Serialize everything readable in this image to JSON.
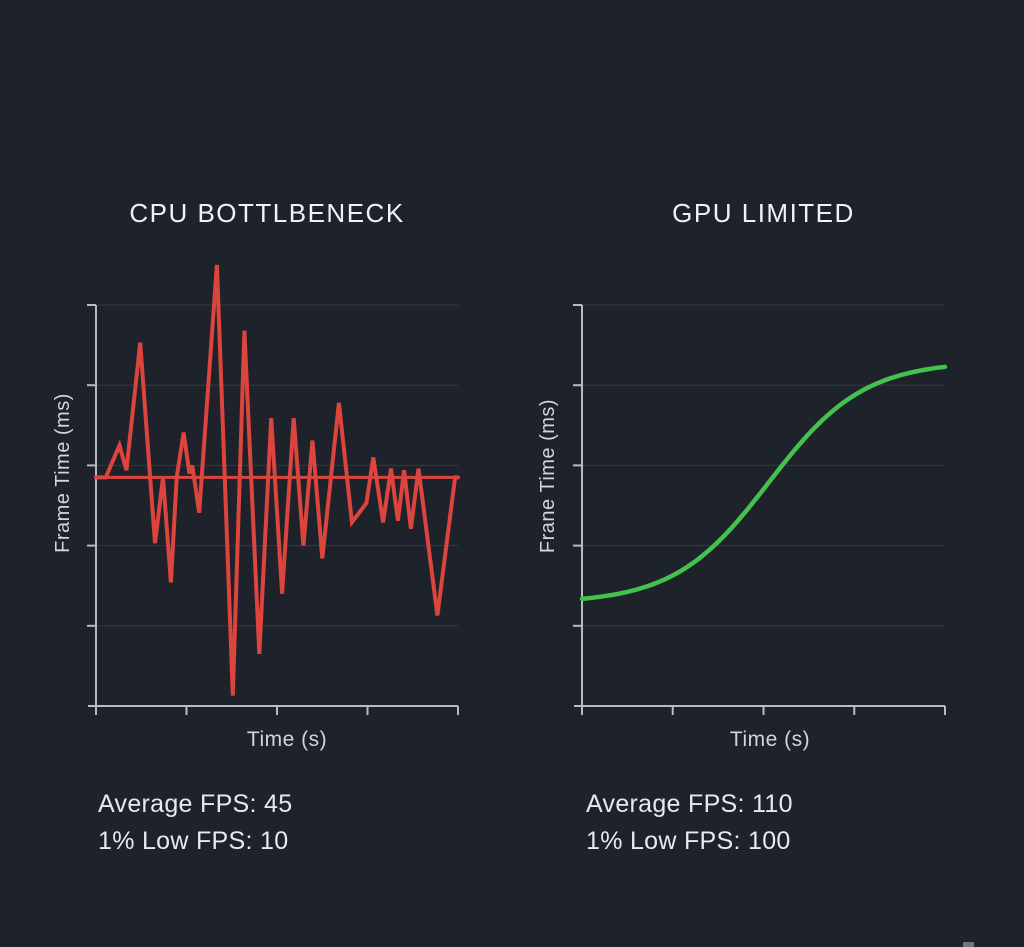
{
  "theme": {
    "background": "#1e222a",
    "axis_color": "#b7bbc3",
    "grid_color": "rgba(255,255,255,0.10)",
    "title_color": "#f1f2f5",
    "text_color": "#e7e9ed",
    "cpu_line_color": "#dc443e",
    "gpu_line_color": "#43c24d"
  },
  "panels": [
    {
      "title": "CPU BOTTLBENECK",
      "ylabel": "Frame Time (ms)",
      "xlabel": "Time (s)",
      "stats": {
        "average": "Average FPS: 45",
        "low": "1% Low FPS: 10"
      }
    },
    {
      "title": "GPU LIMITED",
      "ylabel": "Frane Time (ms)",
      "xlabel": "Time (s)",
      "stats": {
        "average": "Average FPS: 110",
        "low": "1% Low FPS: 100"
      }
    }
  ],
  "chart_data": [
    {
      "type": "line",
      "title": "CPU BOTTLBENECK",
      "xlabel": "Time (s)",
      "ylabel": "Frame Time (ms)",
      "xlim": [
        0,
        10
      ],
      "ylim": [
        0,
        50
      ],
      "ygrid": [
        10,
        20,
        30,
        40,
        50
      ],
      "xticks": [
        0,
        2.5,
        5,
        7.5,
        10
      ],
      "tick_labels_visible": false,
      "grid": "horizontal",
      "legend": "none",
      "annotations": {
        "average_fps": 45,
        "one_percent_low_fps": 10
      },
      "series": [
        {
          "name": "frame-time-jitter",
          "kind": "points",
          "color": "#dc443e",
          "x": [
            0,
            0.27,
            0.65,
            0.84,
            1.22,
            1.63,
            1.85,
            2.07,
            2.23,
            2.42,
            2.58,
            2.66,
            2.85,
            3.34,
            3.78,
            4.1,
            4.51,
            4.84,
            5.14,
            5.46,
            5.73,
            5.98,
            6.25,
            6.71,
            7.07,
            7.47,
            7.66,
            7.93,
            8.15,
            8.34,
            8.51,
            8.7,
            8.91,
            9.43,
            9.92,
            10
          ],
          "y": [
            28.5,
            28.5,
            32.5,
            29.4,
            45.3,
            20.3,
            28.5,
            15.4,
            28.5,
            34.1,
            29.0,
            30.0,
            24.1,
            55.0,
            1.3,
            46.8,
            6.5,
            35.9,
            14.0,
            35.9,
            20.0,
            33.1,
            18.4,
            37.8,
            22.9,
            25.3,
            31.0,
            22.9,
            29.6,
            23.1,
            29.4,
            22.1,
            29.6,
            11.3,
            28.5,
            28.5
          ]
        },
        {
          "name": "average-frame-time-line",
          "kind": "hline",
          "color": "#dc443e",
          "value": 28.5
        }
      ]
    },
    {
      "type": "line",
      "title": "GPU LIMITED",
      "xlabel": "Time (s)",
      "ylabel": "Frane Time (ms)",
      "xlim": [
        0,
        10
      ],
      "ylim": [
        0,
        50
      ],
      "ygrid": [
        10,
        20,
        30,
        40,
        50
      ],
      "xticks": [
        0,
        2.5,
        5,
        7.5,
        10
      ],
      "tick_labels_visible": false,
      "grid": "horizontal",
      "legend": "none",
      "annotations": {
        "average_fps": 110,
        "one_percent_low_fps": 100
      },
      "series": [
        {
          "name": "frame-time-smooth",
          "kind": "sigmoid",
          "color": "#43c24d",
          "params": {
            "low": 12.8,
            "high": 43,
            "midpoint": 5.15,
            "steepness": 1.3
          }
        }
      ]
    }
  ]
}
